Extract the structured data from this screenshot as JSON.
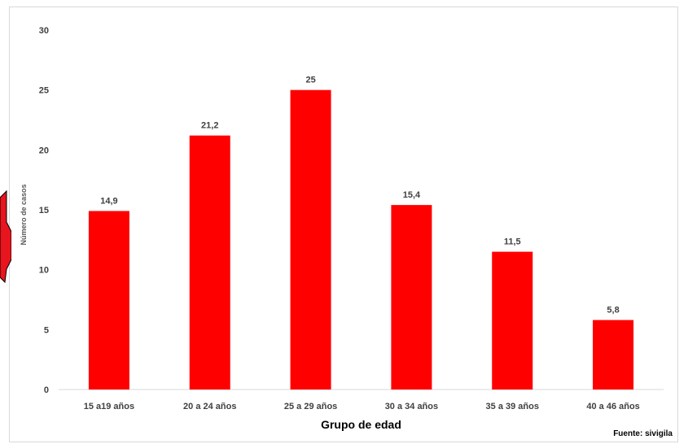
{
  "chart_data": {
    "type": "bar",
    "categories": [
      "15 a19 años",
      "20 a 24 años",
      "25 a 29 años",
      "30 a 34 años",
      "35 a 39 años",
      "40 a 46 años"
    ],
    "values": [
      14.9,
      21.2,
      25,
      15.4,
      11.5,
      5.8
    ],
    "value_labels": [
      "14,9",
      "21,2",
      "25",
      "15,4",
      "11,5",
      "5,8"
    ],
    "title": "",
    "xlabel": "Grupo de edad",
    "ylabel": "Número de casos",
    "ylim": [
      0,
      30
    ],
    "yticks": [
      0,
      5,
      10,
      15,
      20,
      25,
      30
    ],
    "grid": false,
    "legend": "none",
    "bar_color": "#ff0000"
  },
  "source_note": "Fuente: sivigila",
  "colors": {
    "bars": "#ff0000",
    "decor_shape": "#e8141e"
  }
}
